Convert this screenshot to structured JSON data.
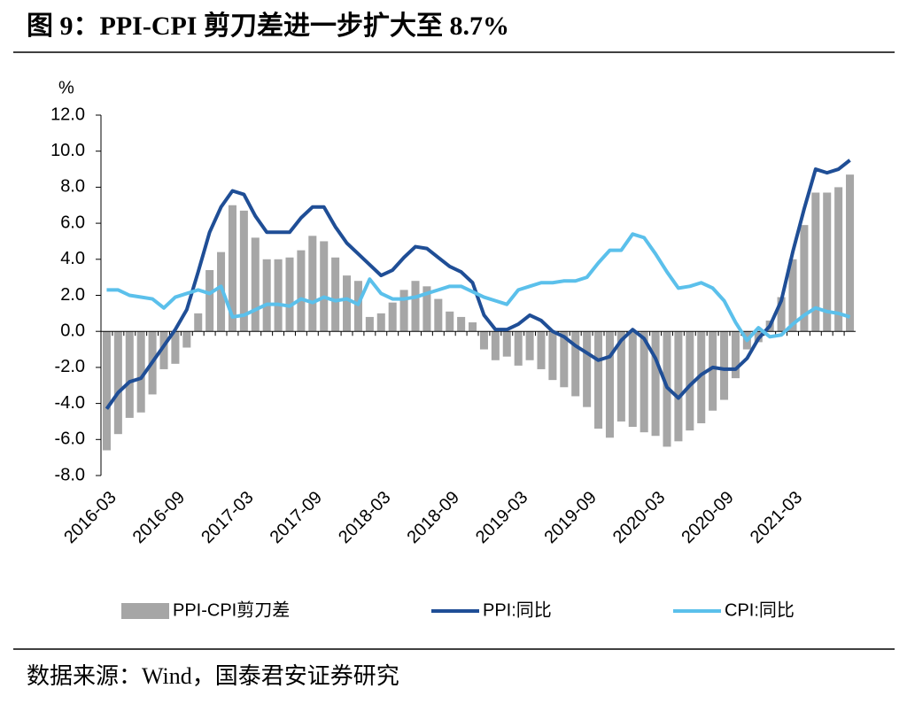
{
  "chart_data": {
    "type": "bar-line",
    "title": "图 9：PPI-CPI 剪刀差进一步扩大至 8.7%",
    "y_unit": "%",
    "source": "数据来源：Wind，国泰君安证券研究",
    "categories": [
      "2016-03",
      null,
      null,
      null,
      null,
      null,
      "2016-09",
      null,
      null,
      null,
      null,
      null,
      "2017-03",
      null,
      null,
      null,
      null,
      null,
      "2017-09",
      null,
      null,
      null,
      null,
      null,
      "2018-03",
      null,
      null,
      null,
      null,
      null,
      "2018-09",
      null,
      null,
      null,
      null,
      null,
      "2019-03",
      null,
      null,
      null,
      null,
      null,
      "2019-09",
      null,
      null,
      null,
      null,
      null,
      "2020-03",
      null,
      null,
      null,
      null,
      null,
      "2020-09",
      null,
      null,
      null,
      null,
      null,
      "2021-03",
      null,
      null,
      null,
      null,
      null
    ],
    "ylim": [
      -8,
      12
    ],
    "yticks": [
      {
        "value": 12,
        "label": "12.0"
      },
      {
        "value": 10,
        "label": "10.0"
      },
      {
        "value": 8,
        "label": "8.0"
      },
      {
        "value": 6,
        "label": "6.0"
      },
      {
        "value": 4,
        "label": "4.0"
      },
      {
        "value": 2,
        "label": "2.0"
      },
      {
        "value": 0,
        "label": "0.0"
      },
      {
        "value": -2,
        "label": "-2.0"
      },
      {
        "value": -4,
        "label": "-4.0"
      },
      {
        "value": -6,
        "label": "-6.0"
      },
      {
        "value": -8,
        "label": "-8.0"
      }
    ],
    "grid": false,
    "series": [
      {
        "name": "PPI-CPI剪刀差",
        "type": "bar",
        "color": "#a6a6a6",
        "values": [
          -6.6,
          -5.7,
          -4.8,
          -4.5,
          -3.5,
          -2.1,
          -1.8,
          -0.9,
          1.0,
          3.4,
          4.4,
          7.0,
          6.7,
          5.2,
          4.0,
          4.0,
          4.1,
          4.5,
          5.3,
          5.0,
          4.1,
          3.1,
          2.8,
          0.8,
          1.0,
          1.6,
          2.3,
          2.8,
          2.5,
          1.8,
          1.1,
          0.8,
          0.5,
          -1.0,
          -1.6,
          -1.4,
          -1.9,
          -1.6,
          -2.1,
          -2.7,
          -3.1,
          -3.6,
          -4.2,
          -5.4,
          -5.9,
          -5.0,
          -5.3,
          -5.6,
          -5.8,
          -6.4,
          -6.1,
          -5.5,
          -5.1,
          -4.4,
          -3.8,
          -2.6,
          -1.0,
          -0.6,
          0.6,
          1.9,
          4.0,
          5.9,
          7.7,
          7.7,
          8.0,
          8.7
        ]
      },
      {
        "name": "PPI:同比",
        "type": "line",
        "color": "#1f4e96",
        "values": [
          -4.3,
          -3.4,
          -2.8,
          -2.6,
          -1.7,
          -0.8,
          0.1,
          1.2,
          3.3,
          5.5,
          6.9,
          7.8,
          7.6,
          6.4,
          5.5,
          5.5,
          5.5,
          6.3,
          6.9,
          6.9,
          5.8,
          4.9,
          4.3,
          3.7,
          3.1,
          3.4,
          4.1,
          4.7,
          4.6,
          4.1,
          3.6,
          3.3,
          2.7,
          0.9,
          0.1,
          0.1,
          0.4,
          0.9,
          0.6,
          0.0,
          -0.3,
          -0.8,
          -1.2,
          -1.6,
          -1.4,
          -0.5,
          0.1,
          -0.4,
          -1.5,
          -3.1,
          -3.7,
          -3.0,
          -2.4,
          -2.0,
          -2.1,
          -2.1,
          -1.5,
          -0.4,
          0.3,
          1.7,
          4.4,
          6.8,
          9.0,
          8.8,
          9.0,
          9.5
        ]
      },
      {
        "name": "CPI:同比",
        "type": "line",
        "color": "#5bc0eb",
        "values": [
          2.3,
          2.3,
          2.0,
          1.9,
          1.8,
          1.3,
          1.9,
          2.1,
          2.3,
          2.1,
          2.5,
          0.8,
          0.9,
          1.2,
          1.5,
          1.5,
          1.4,
          1.8,
          1.6,
          1.9,
          1.7,
          1.8,
          1.5,
          2.9,
          2.1,
          1.8,
          1.8,
          1.9,
          2.1,
          2.3,
          2.5,
          2.5,
          2.2,
          1.9,
          1.7,
          1.5,
          2.3,
          2.5,
          2.7,
          2.7,
          2.8,
          2.8,
          3.0,
          3.8,
          4.5,
          4.5,
          5.4,
          5.2,
          4.3,
          3.3,
          2.4,
          2.5,
          2.7,
          2.4,
          1.7,
          0.5,
          -0.5,
          0.2,
          -0.3,
          -0.2,
          0.4,
          0.9,
          1.3,
          1.1,
          1.0,
          0.8
        ]
      }
    ]
  }
}
